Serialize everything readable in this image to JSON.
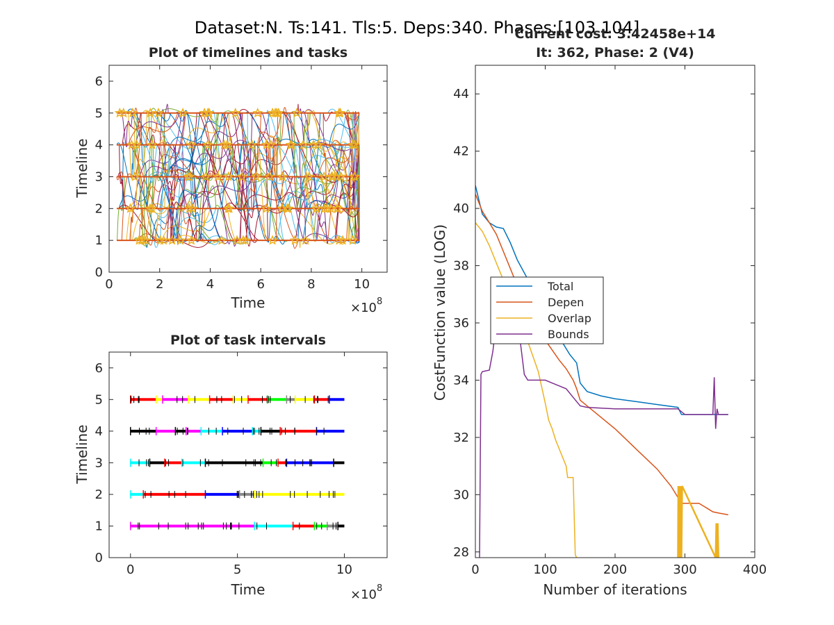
{
  "figure": {
    "suptitle": "Dataset:N. Ts:141. Tls:5. Deps:340. Phases:[103 104]"
  },
  "chart_data": [
    {
      "id": "timelines",
      "type": "line",
      "title": "Plot of timelines and tasks",
      "xlabel": "Time",
      "ylabel": "Timeline",
      "xlim": [
        0,
        1100000000.0
      ],
      "ylim": [
        0,
        6.5
      ],
      "x_exponent_label": "×10",
      "x_exponent": "8",
      "xticks": [
        0,
        2,
        4,
        6,
        8,
        10
      ],
      "yticks": [
        0,
        1,
        2,
        3,
        4,
        5,
        6
      ],
      "timelines": [
        1,
        2,
        3,
        4,
        5
      ],
      "time_range": [
        30000000.0,
        990000000.0
      ],
      "note_series": "many dependency curves (multi-color) connecting task markers across timelines"
    },
    {
      "id": "intervals",
      "type": "scatter",
      "title": "Plot of task intervals",
      "xlabel": "Time",
      "ylabel": "Timeline",
      "xlim": [
        -100000000.0,
        1200000000.0
      ],
      "ylim": [
        0,
        6.5
      ],
      "x_exponent_label": "×10",
      "x_exponent": "8",
      "xticks": [
        0,
        5,
        10
      ],
      "yticks": [
        0,
        1,
        2,
        3,
        4,
        5,
        6
      ],
      "time_range": [
        0,
        1000000000.0
      ],
      "rows": [
        {
          "timeline": 5,
          "segments": [
            [
              0,
              1.2,
              "#ff0000"
            ],
            [
              1.2,
              1.5,
              "#ffff00"
            ],
            [
              1.5,
              2.7,
              "#ff00ff"
            ],
            [
              2.7,
              3.7,
              "#ffff00"
            ],
            [
              3.7,
              4.8,
              "#ff0000"
            ],
            [
              4.8,
              5.5,
              "#ffff00"
            ],
            [
              5.5,
              6.4,
              "#ff0000"
            ],
            [
              6.4,
              7.3,
              "#00ff00"
            ],
            [
              7.3,
              7.7,
              "#888888"
            ],
            [
              7.7,
              8.6,
              "#ffff00"
            ],
            [
              8.6,
              9.3,
              "#ff0000"
            ],
            [
              9.3,
              10,
              "#0000ff"
            ]
          ]
        },
        {
          "timeline": 4,
          "segments": [
            [
              0,
              1.2,
              "#000000"
            ],
            [
              1.2,
              2.1,
              "#ff00ff"
            ],
            [
              2.1,
              2.6,
              "#000000"
            ],
            [
              2.6,
              3.3,
              "#ff00ff"
            ],
            [
              3.3,
              4.3,
              "#00ffff"
            ],
            [
              4.3,
              5.7,
              "#0000ff"
            ],
            [
              5.7,
              6.1,
              "#00ffff"
            ],
            [
              6.1,
              7.0,
              "#000000"
            ],
            [
              7.0,
              8.7,
              "#ff0000"
            ],
            [
              8.7,
              10,
              "#0000ff"
            ]
          ]
        },
        {
          "timeline": 3,
          "segments": [
            [
              0,
              0.9,
              "#00ffff"
            ],
            [
              0.9,
              1.6,
              "#000000"
            ],
            [
              1.6,
              2.4,
              "#ff0000"
            ],
            [
              2.4,
              3.5,
              "#00ffff"
            ],
            [
              3.5,
              6.2,
              "#000000"
            ],
            [
              6.2,
              6.9,
              "#00ff00"
            ],
            [
              6.9,
              7.3,
              "#ff0000"
            ],
            [
              7.3,
              9.5,
              "#0000ff"
            ],
            [
              9.5,
              10,
              "#000000"
            ]
          ]
        },
        {
          "timeline": 2,
          "segments": [
            [
              0,
              0.6,
              "#00ffff"
            ],
            [
              0.6,
              3.5,
              "#ff0000"
            ],
            [
              3.5,
              5.1,
              "#0000ff"
            ],
            [
              5.1,
              5.8,
              "#888888"
            ],
            [
              5.8,
              10,
              "#ffff00"
            ]
          ]
        },
        {
          "timeline": 1,
          "segments": [
            [
              0,
              5.8,
              "#ff00ff"
            ],
            [
              5.8,
              7.6,
              "#00ffff"
            ],
            [
              7.6,
              8.6,
              "#ff0000"
            ],
            [
              8.6,
              9.2,
              "#00ff00"
            ],
            [
              9.2,
              9.7,
              "#888888"
            ],
            [
              9.7,
              10,
              "#000000"
            ]
          ]
        }
      ]
    },
    {
      "id": "cost",
      "type": "line",
      "title": "Current cost: 3.42458e+14",
      "subtitle": "It: 362, Phase: 2 (V4)",
      "xlabel": "Number of iterations",
      "ylabel": "CostFunction value (LOG)",
      "xlim": [
        0,
        400
      ],
      "ylim": [
        27.8,
        45
      ],
      "xticks": [
        0,
        100,
        200,
        300,
        400
      ],
      "yticks": [
        28,
        30,
        32,
        34,
        36,
        38,
        40,
        42,
        44
      ],
      "legend_position": "upper-left",
      "series": [
        {
          "name": "Total",
          "color": "#0072bd",
          "x": [
            0,
            5,
            10,
            20,
            30,
            40,
            50,
            60,
            80,
            100,
            120,
            135,
            145,
            150,
            160,
            180,
            200,
            230,
            260,
            290,
            295,
            300,
            340,
            345,
            347,
            350,
            362
          ],
          "y": [
            40.8,
            40.3,
            39.8,
            39.5,
            39.35,
            39.3,
            38.8,
            38.2,
            37.3,
            36.4,
            35.5,
            34.9,
            34.6,
            33.9,
            33.6,
            33.45,
            33.35,
            33.25,
            33.15,
            33.05,
            32.8,
            32.8,
            32.8,
            32.8,
            32.8,
            32.8,
            32.8
          ]
        },
        {
          "name": "Depen",
          "color": "#d95319",
          "x": [
            0,
            10,
            20,
            30,
            40,
            50,
            60,
            80,
            100,
            120,
            130,
            140,
            145,
            150,
            170,
            200,
            230,
            260,
            280,
            290,
            295,
            320,
            340,
            350,
            362
          ],
          "y": [
            40.5,
            39.9,
            39.5,
            39.1,
            38.5,
            37.9,
            37.3,
            36.4,
            35.4,
            34.7,
            34.4,
            34.0,
            33.7,
            33.3,
            32.9,
            32.3,
            31.6,
            30.9,
            30.3,
            29.9,
            29.7,
            29.7,
            29.4,
            29.35,
            29.3
          ]
        },
        {
          "name": "Overlap",
          "color": "#edb120",
          "x": [
            0,
            10,
            20,
            30,
            40,
            50,
            60,
            70,
            80,
            90,
            100,
            105,
            110,
            115,
            120,
            125,
            130,
            132,
            140,
            143,
            145
          ],
          "y": [
            39.5,
            39.2,
            38.7,
            38.1,
            37.5,
            36.9,
            36.3,
            35.7,
            35.0,
            34.3,
            33.2,
            32.6,
            32.3,
            31.9,
            31.6,
            31.3,
            31.0,
            30.6,
            30.6,
            27.9,
            27.8
          ]
        },
        {
          "name": "Bounds",
          "color": "#7e2f8e",
          "x": [
            6,
            7,
            8,
            10,
            20,
            25,
            28,
            35,
            45,
            60,
            70,
            75,
            80,
            90,
            100,
            110,
            120,
            130,
            140,
            150,
            160,
            200,
            250,
            290,
            300,
            340,
            342,
            344,
            346,
            348,
            350,
            362
          ],
          "y": [
            27.8,
            31.0,
            34.2,
            34.3,
            34.35,
            35.0,
            35.6,
            36.4,
            36.3,
            36.2,
            34.2,
            34.0,
            34.0,
            34.0,
            34.0,
            33.9,
            33.8,
            33.7,
            33.4,
            33.1,
            33.05,
            33.0,
            33.0,
            33.0,
            32.8,
            32.8,
            34.1,
            32.3,
            33.0,
            32.8,
            32.8,
            32.8
          ]
        },
        {
          "name": "",
          "color": "#edb120",
          "x": [
            290,
            290.5,
            291,
            292,
            293,
            294,
            295,
            296,
            344,
            345,
            346,
            347,
            348
          ],
          "y": [
            27.8,
            30.3,
            27.8,
            30.3,
            27.8,
            30.3,
            27.8,
            30.3,
            27.8,
            29.0,
            27.8,
            29.0,
            27.8
          ]
        }
      ]
    }
  ]
}
